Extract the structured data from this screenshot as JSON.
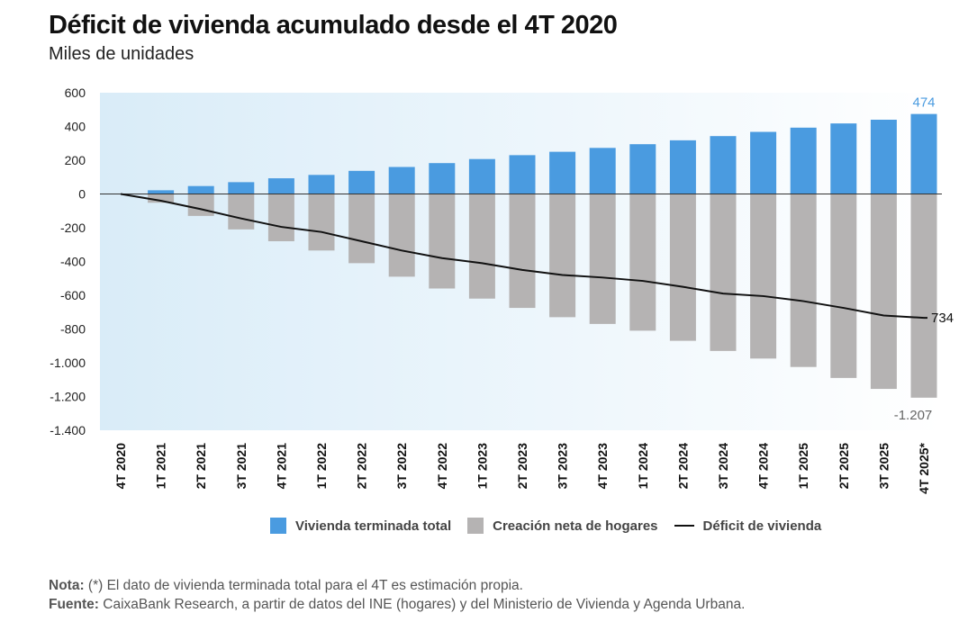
{
  "header": {
    "title": "Déficit de vivienda acumulado desde el 4T 2020",
    "subtitle": "Miles de unidades"
  },
  "chart_data": {
    "type": "bar",
    "categories": [
      "4T 2020",
      "1T 2021",
      "2T 2021",
      "3T 2021",
      "4T 2021",
      "1T 2022",
      "2T 2022",
      "3T 2022",
      "4T 2022",
      "1T 2023",
      "2T 2023",
      "3T 2023",
      "4T 2023",
      "1T 2024",
      "2T 2024",
      "3T 2024",
      "4T 2024",
      "1T 2025",
      "2T 2025",
      "3T 2025",
      "4T 2025*"
    ],
    "ylim": [
      -1400,
      600
    ],
    "yticks": [
      600,
      400,
      200,
      0,
      -200,
      -400,
      -600,
      -800,
      -1000,
      -1200,
      -1400
    ],
    "ytick_labels": [
      "600",
      "400",
      "200",
      "0",
      "-200",
      "-400",
      "-600",
      "-800",
      "-1.000",
      "-1.200",
      "-1.400"
    ],
    "series": [
      {
        "name": "Vivienda terminada total",
        "kind": "bar",
        "color": "#4a9be0",
        "values": [
          0,
          22,
          47,
          70,
          93,
          113,
          137,
          160,
          183,
          207,
          230,
          250,
          273,
          295,
          318,
          343,
          368,
          393,
          418,
          440,
          474
        ]
      },
      {
        "name": "Creación neta de hogares",
        "kind": "bar",
        "color": "#b5b3b3",
        "values": [
          0,
          -52,
          -130,
          -210,
          -280,
          -335,
          -410,
          -490,
          -560,
          -620,
          -675,
          -730,
          -770,
          -810,
          -870,
          -930,
          -975,
          -1025,
          -1090,
          -1155,
          -1207
        ]
      },
      {
        "name": "Déficit de vivienda",
        "kind": "line",
        "color": "#111111",
        "values": [
          0,
          -40,
          -90,
          -145,
          -195,
          -225,
          -280,
          -335,
          -380,
          -410,
          -450,
          -480,
          -495,
          -515,
          -550,
          -590,
          -605,
          -635,
          -675,
          -720,
          -734
        ]
      }
    ],
    "annotations": {
      "last_bar_positive": "474",
      "last_bar_negative": "-1.207",
      "last_line": "734"
    }
  },
  "legend": {
    "items": [
      {
        "label": "Vivienda terminada total",
        "color": "#4a9be0"
      },
      {
        "label": "Creación neta de hogares",
        "color": "#b5b3b3"
      },
      {
        "label": "Déficit de vivienda",
        "color": "#111111"
      }
    ]
  },
  "notes": {
    "nota_label": "Nota:",
    "nota_text": " (*) El dato de vivienda terminada total para el 4T es estimación propia.",
    "fuente_label": "Fuente:",
    "fuente_text": " CaixaBank Research, a partir de datos del INE (hogares) y del Ministerio de Vivienda y Agenda Urbana."
  }
}
